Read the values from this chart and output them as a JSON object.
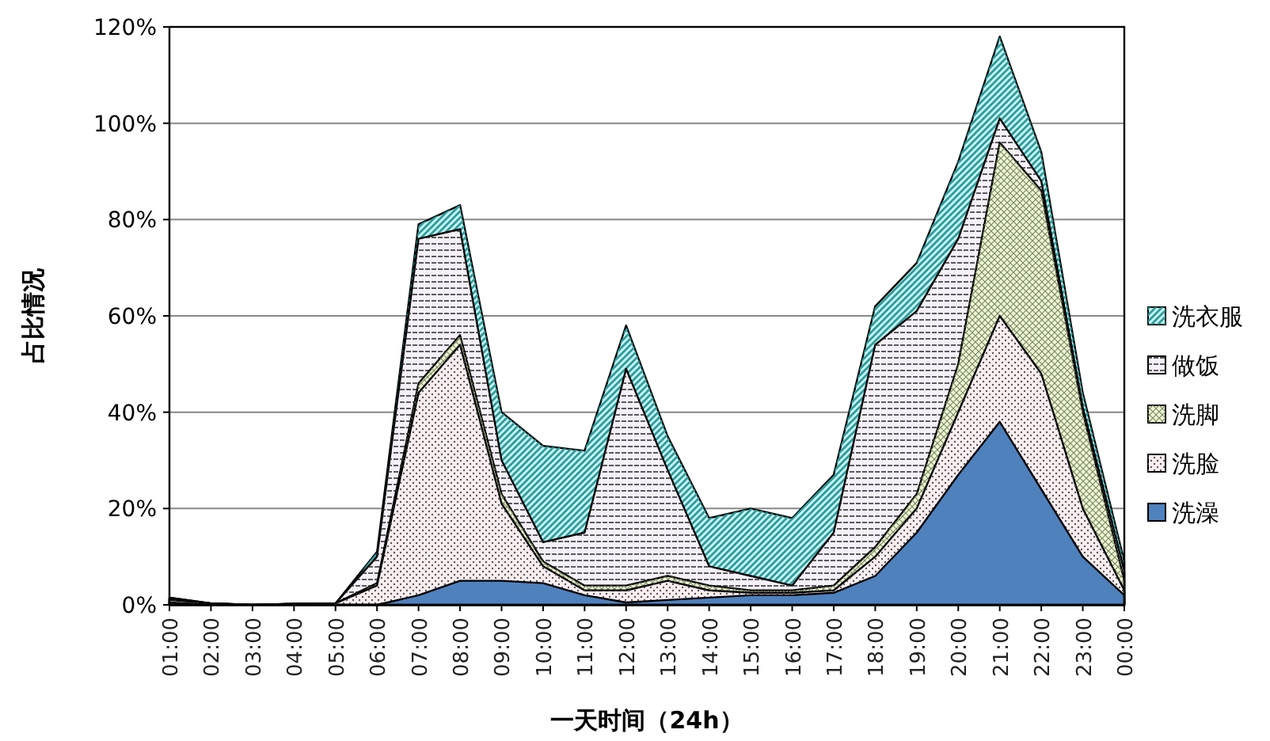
{
  "chart_data": {
    "type": "area",
    "stacked": true,
    "xlabel": "一天时间（24h）",
    "ylabel": "占比情况",
    "categories": [
      "01:00",
      "02:00",
      "03:00",
      "04:00",
      "05:00",
      "06:00",
      "07:00",
      "08:00",
      "09:00",
      "10:00",
      "11:00",
      "12:00",
      "13:00",
      "14:00",
      "15:00",
      "16:00",
      "17:00",
      "18:00",
      "19:00",
      "20:00",
      "21:00",
      "22:00",
      "23:00",
      "00:00"
    ],
    "series": [
      {
        "name": "洗澡",
        "color": "#4f81bd",
        "values": [
          0.5,
          0,
          0,
          0,
          0,
          0,
          2,
          5,
          5,
          4.5,
          2,
          0.5,
          1,
          1.5,
          2,
          2,
          2.5,
          6,
          15,
          27,
          38,
          24,
          10,
          2
        ]
      },
      {
        "name": "洗脸",
        "color": "#fbeef0",
        "values": [
          0.5,
          0.3,
          0,
          0.2,
          0.3,
          4,
          42,
          49,
          16,
          3.5,
          1,
          2.5,
          4,
          1.5,
          0.5,
          0.5,
          0.5,
          4,
          5,
          13,
          22,
          24,
          10,
          1
        ]
      },
      {
        "name": "洗脚",
        "color": "#eef5d6",
        "values": [
          0.2,
          0,
          0,
          0,
          0,
          0.5,
          2,
          2,
          2,
          1,
          1,
          1,
          1,
          1,
          0.5,
          0.5,
          1,
          2,
          3,
          10,
          36,
          38,
          20,
          2
        ]
      },
      {
        "name": "做饭",
        "color": "#f5f0fa",
        "values": [
          0.3,
          0,
          0,
          0,
          0,
          5.5,
          30,
          22,
          7,
          4,
          11,
          45,
          22,
          4,
          3,
          1,
          11,
          42,
          38,
          26,
          5,
          2,
          1,
          2
        ]
      },
      {
        "name": "洗衣服",
        "color": "#ccf3f3",
        "values": [
          0,
          0,
          0,
          0,
          0,
          1,
          3,
          5,
          10,
          20,
          17,
          9,
          7,
          10,
          14,
          14,
          12,
          8,
          10,
          16,
          17,
          6,
          3,
          2
        ]
      }
    ],
    "ylim": [
      0,
      120
    ],
    "yticks": [
      {
        "value": 0,
        "label": "0%"
      },
      {
        "value": 20,
        "label": "20%"
      },
      {
        "value": 40,
        "label": "40%"
      },
      {
        "value": 60,
        "label": "60%"
      },
      {
        "value": 80,
        "label": "80%"
      },
      {
        "value": 100,
        "label": "100%"
      },
      {
        "value": 120,
        "label": "120%"
      }
    ],
    "grid": "y",
    "legend": "right"
  }
}
